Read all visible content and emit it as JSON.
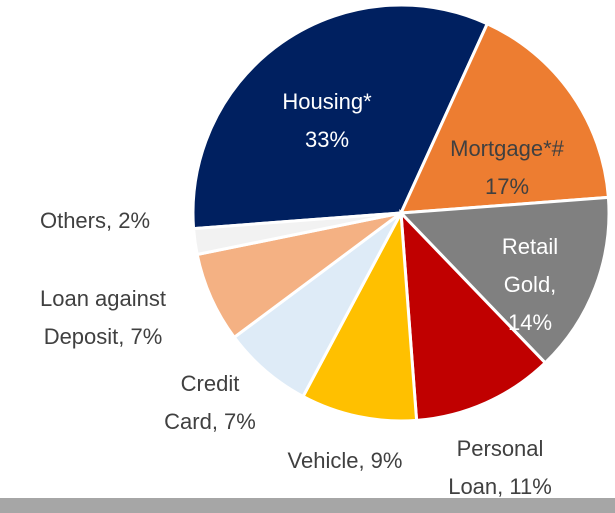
{
  "chart_data": {
    "type": "pie",
    "labels": [
      [
        "Housing*",
        "33%"
      ],
      [
        "Mortgage*#",
        "17%"
      ],
      [
        "Retail",
        "Gold,",
        "14%"
      ],
      [
        "Personal",
        "Loan, 11%"
      ],
      [
        "Vehicle, 9%"
      ],
      [
        "Credit",
        "Card, 7%"
      ],
      [
        "Loan against",
        "Deposit, 7%"
      ],
      [
        "Others, 2%"
      ]
    ],
    "values": [
      33,
      17,
      14,
      11,
      9,
      7,
      7,
      2
    ],
    "colors": [
      "#002060",
      "#ED7D31",
      "#808080",
      "#C00000",
      "#FFC000",
      "#DEEBF7",
      "#F4B183",
      "#F2F2F2"
    ]
  }
}
